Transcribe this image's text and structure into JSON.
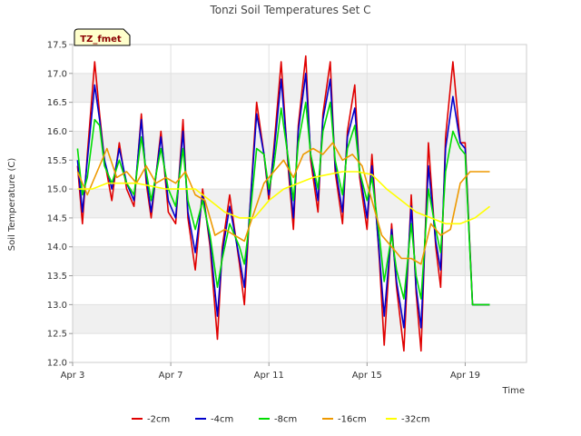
{
  "chart_data": {
    "type": "line",
    "title": "Tonzi Soil Temperatures Set C",
    "xlabel": "Time",
    "ylabel": "Soil Temperature (C)",
    "badge": "TZ_fmet",
    "ylim": [
      12.0,
      17.5
    ],
    "xlim": [
      0,
      18.5
    ],
    "yticks": [
      12.0,
      12.5,
      13.0,
      13.5,
      14.0,
      14.5,
      15.0,
      15.5,
      16.0,
      16.5,
      17.0,
      17.5
    ],
    "xticks": [
      {
        "label": "Apr 3",
        "value": 0
      },
      {
        "label": "Apr 7",
        "value": 4
      },
      {
        "label": "Apr 11",
        "value": 8
      },
      {
        "label": "Apr 15",
        "value": 12
      },
      {
        "label": "Apr 19",
        "value": 16
      }
    ],
    "grid": true,
    "legend_position": "bottom",
    "series": [
      {
        "name": "-2cm",
        "color": "#e00000",
        "x": [
          0.2,
          0.4,
          0.6,
          0.9,
          1.1,
          1.3,
          1.6,
          1.9,
          2.2,
          2.5,
          2.8,
          3.0,
          3.2,
          3.6,
          3.9,
          4.2,
          4.5,
          4.7,
          5.0,
          5.3,
          5.6,
          5.9,
          6.1,
          6.4,
          6.8,
          7.0,
          7.2,
          7.5,
          7.8,
          8.0,
          8.2,
          8.5,
          8.8,
          9.0,
          9.2,
          9.5,
          9.7,
          10.0,
          10.2,
          10.5,
          10.7,
          11.0,
          11.2,
          11.5,
          11.7,
          12.0,
          12.2,
          12.5,
          12.7,
          13.0,
          13.2,
          13.5,
          13.8,
          14.0,
          14.2,
          14.5,
          14.8,
          15.0,
          15.2,
          15.5,
          15.8,
          16.0,
          16.3,
          16.6,
          16.8,
          17.0
        ],
        "y": [
          15.4,
          14.4,
          15.6,
          17.2,
          16.3,
          15.5,
          14.8,
          15.8,
          15.0,
          14.7,
          16.3,
          15.1,
          14.5,
          16.0,
          14.6,
          14.4,
          16.2,
          14.5,
          13.6,
          15.0,
          14.0,
          12.4,
          14.0,
          14.9,
          13.7,
          13.0,
          14.5,
          16.5,
          15.6,
          14.8,
          15.7,
          17.2,
          15.3,
          14.3,
          16.1,
          17.3,
          15.5,
          14.6,
          16.3,
          17.2,
          15.3,
          14.4,
          16.0,
          16.8,
          15.2,
          14.3,
          15.6,
          13.8,
          12.3,
          14.4,
          13.3,
          12.2,
          14.9,
          13.2,
          12.2,
          15.8,
          14.0,
          13.3,
          15.9,
          17.2,
          15.8,
          15.8,
          13.0,
          13.0,
          13.0,
          13.0
        ]
      },
      {
        "name": "-4cm",
        "color": "#0000cc",
        "x": [
          0.2,
          0.4,
          0.6,
          0.9,
          1.1,
          1.3,
          1.6,
          1.9,
          2.2,
          2.5,
          2.8,
          3.0,
          3.2,
          3.6,
          3.9,
          4.2,
          4.5,
          4.7,
          5.0,
          5.3,
          5.6,
          5.9,
          6.1,
          6.4,
          6.8,
          7.0,
          7.2,
          7.5,
          7.8,
          8.0,
          8.2,
          8.5,
          8.8,
          9.0,
          9.2,
          9.5,
          9.7,
          10.0,
          10.2,
          10.5,
          10.7,
          11.0,
          11.2,
          11.5,
          11.7,
          12.0,
          12.2,
          12.5,
          12.7,
          13.0,
          13.2,
          13.5,
          13.8,
          14.0,
          14.2,
          14.5,
          14.8,
          15.0,
          15.2,
          15.5,
          15.8,
          16.0,
          16.3,
          16.6,
          16.8,
          17.0
        ],
        "y": [
          15.5,
          14.6,
          15.5,
          16.8,
          16.2,
          15.5,
          15.0,
          15.7,
          15.1,
          14.8,
          16.2,
          15.2,
          14.6,
          15.9,
          14.8,
          14.5,
          16.0,
          14.6,
          13.9,
          14.9,
          14.1,
          12.8,
          13.9,
          14.7,
          13.8,
          13.3,
          14.5,
          16.3,
          15.6,
          14.9,
          15.6,
          16.9,
          15.4,
          14.5,
          16.0,
          17.0,
          15.6,
          14.8,
          16.2,
          16.9,
          15.4,
          14.6,
          15.9,
          16.4,
          15.3,
          14.5,
          15.4,
          13.9,
          12.8,
          14.3,
          13.4,
          12.6,
          14.7,
          13.3,
          12.6,
          15.4,
          14.1,
          13.6,
          15.7,
          16.6,
          15.8,
          15.7,
          13.0,
          13.0,
          13.0,
          13.0
        ]
      },
      {
        "name": "-8cm",
        "color": "#00dd00",
        "x": [
          0.2,
          0.4,
          0.6,
          0.9,
          1.1,
          1.3,
          1.6,
          1.9,
          2.2,
          2.5,
          2.8,
          3.0,
          3.2,
          3.6,
          3.9,
          4.2,
          4.5,
          4.7,
          5.0,
          5.3,
          5.6,
          5.9,
          6.1,
          6.4,
          6.8,
          7.0,
          7.2,
          7.5,
          7.8,
          8.0,
          8.2,
          8.5,
          8.8,
          9.0,
          9.2,
          9.5,
          9.7,
          10.0,
          10.2,
          10.5,
          10.7,
          11.0,
          11.2,
          11.5,
          11.7,
          12.0,
          12.2,
          12.5,
          12.7,
          13.0,
          13.2,
          13.5,
          13.8,
          14.0,
          14.2,
          14.5,
          14.8,
          15.0,
          15.2,
          15.5,
          15.8,
          16.0,
          16.3,
          16.6,
          16.8,
          17.0
        ],
        "y": [
          15.7,
          14.9,
          15.2,
          16.2,
          16.1,
          15.4,
          15.1,
          15.5,
          15.1,
          14.9,
          15.9,
          15.3,
          14.8,
          15.7,
          15.0,
          14.7,
          15.7,
          14.8,
          14.3,
          14.8,
          14.2,
          13.3,
          13.8,
          14.4,
          14.0,
          13.7,
          14.4,
          15.7,
          15.6,
          15.0,
          15.4,
          16.4,
          15.5,
          14.8,
          15.8,
          16.5,
          15.6,
          15.0,
          16.0,
          16.5,
          15.5,
          14.9,
          15.7,
          16.1,
          15.3,
          14.8,
          15.2,
          14.2,
          13.4,
          14.2,
          13.6,
          13.1,
          14.4,
          13.5,
          13.1,
          15.0,
          14.3,
          13.9,
          15.3,
          16.0,
          15.7,
          15.6,
          13.0,
          13.0,
          13.0,
          13.0
        ]
      },
      {
        "name": "-16cm",
        "color": "#ee9900",
        "x": [
          0.2,
          0.6,
          1.0,
          1.4,
          1.8,
          2.2,
          2.6,
          3.0,
          3.4,
          3.8,
          4.2,
          4.6,
          5.0,
          5.4,
          5.8,
          6.2,
          6.6,
          7.0,
          7.4,
          7.8,
          8.2,
          8.6,
          9.0,
          9.4,
          9.8,
          10.2,
          10.6,
          11.0,
          11.4,
          11.8,
          12.2,
          12.6,
          13.0,
          13.4,
          13.8,
          14.2,
          14.6,
          15.0,
          15.4,
          15.8,
          16.2,
          16.6,
          17.0
        ],
        "y": [
          15.3,
          14.9,
          15.3,
          15.7,
          15.2,
          15.3,
          15.1,
          15.4,
          15.1,
          15.2,
          15.1,
          15.3,
          14.9,
          14.8,
          14.2,
          14.3,
          14.2,
          14.1,
          14.6,
          15.1,
          15.3,
          15.5,
          15.2,
          15.6,
          15.7,
          15.6,
          15.8,
          15.5,
          15.6,
          15.4,
          14.8,
          14.2,
          14.0,
          13.8,
          13.8,
          13.7,
          14.4,
          14.2,
          14.3,
          15.1,
          15.3,
          15.3,
          15.3
        ]
      },
      {
        "name": "-32cm",
        "color": "#ffff00",
        "x": [
          0.2,
          0.8,
          1.4,
          2.0,
          2.6,
          3.2,
          3.8,
          4.4,
          5.0,
          5.6,
          6.2,
          6.8,
          7.4,
          8.0,
          8.6,
          9.2,
          9.8,
          10.4,
          11.0,
          11.6,
          12.2,
          12.8,
          13.4,
          14.0,
          14.6,
          15.2,
          15.8,
          16.4,
          17.0
        ],
        "y": [
          15.0,
          15.0,
          15.1,
          15.1,
          15.1,
          15.05,
          15.0,
          15.0,
          15.0,
          14.8,
          14.6,
          14.5,
          14.5,
          14.8,
          15.0,
          15.1,
          15.2,
          15.25,
          15.3,
          15.3,
          15.25,
          15.0,
          14.8,
          14.6,
          14.5,
          14.4,
          14.4,
          14.5,
          14.7
        ]
      }
    ]
  }
}
